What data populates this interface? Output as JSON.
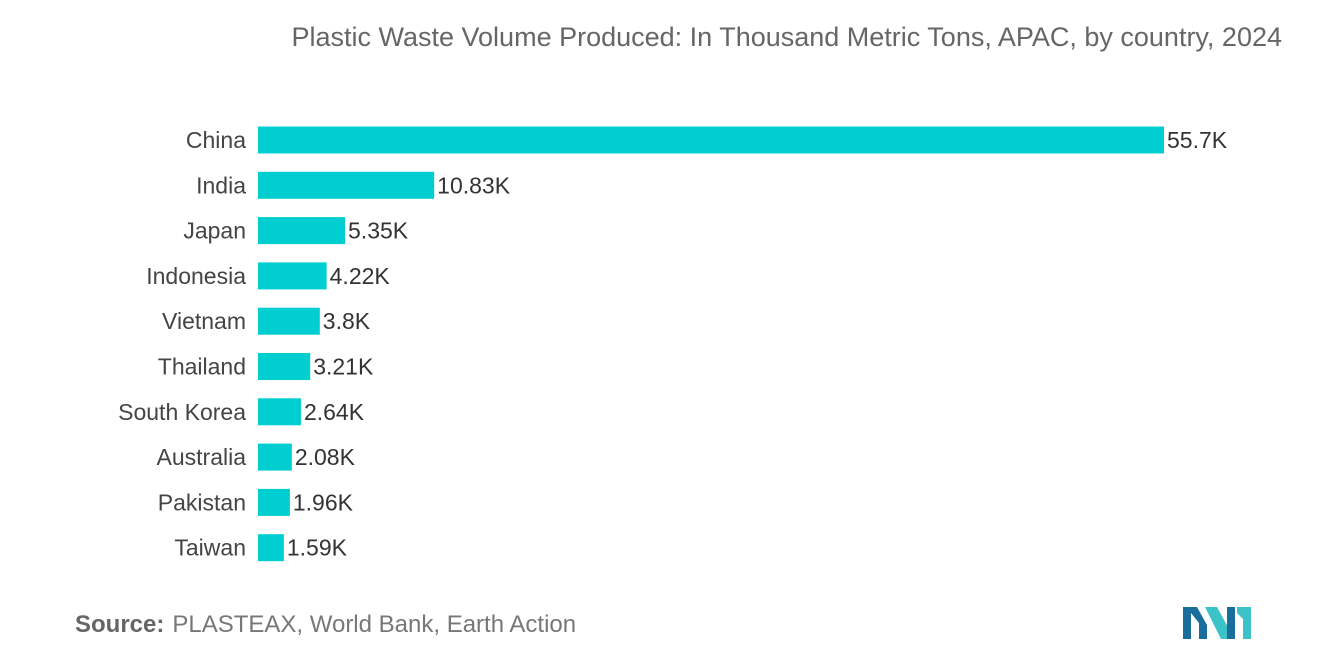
{
  "header": {
    "title": "Plastic Waste Volume Produced:  In Thousand Metric Tons, APAC, by country, 2024"
  },
  "footer": {
    "source_label": "Source:",
    "source_text": "PLASTEAX, World Bank, Earth Action"
  },
  "logo": {
    "icon": "mordor-intelligence-logo-icon",
    "colors": [
      "#1a6e9b",
      "#3bc3c8"
    ]
  },
  "chart_data": {
    "type": "bar",
    "orientation": "horizontal",
    "title": "Plastic Waste Volume Produced:  In Thousand Metric Tons, APAC, by country, 2024",
    "xlabel": "",
    "ylabel": "",
    "grid": false,
    "bar_color": "#00ced1",
    "categories": [
      "China",
      "India",
      "Japan",
      "Indonesia",
      "Vietnam",
      "Thailand",
      "South Korea",
      "Australia",
      "Pakistan",
      "Taiwan"
    ],
    "values": [
      55.7,
      10.83,
      5.35,
      4.22,
      3.8,
      3.21,
      2.64,
      2.08,
      1.96,
      1.59
    ],
    "value_labels": [
      "55.7K",
      "10.83K",
      "5.35K",
      "4.22K",
      "3.8K",
      "3.21K",
      "2.64K",
      "2.08K",
      "1.96K",
      "1.59K"
    ],
    "xlim": [
      0,
      55.7
    ]
  }
}
